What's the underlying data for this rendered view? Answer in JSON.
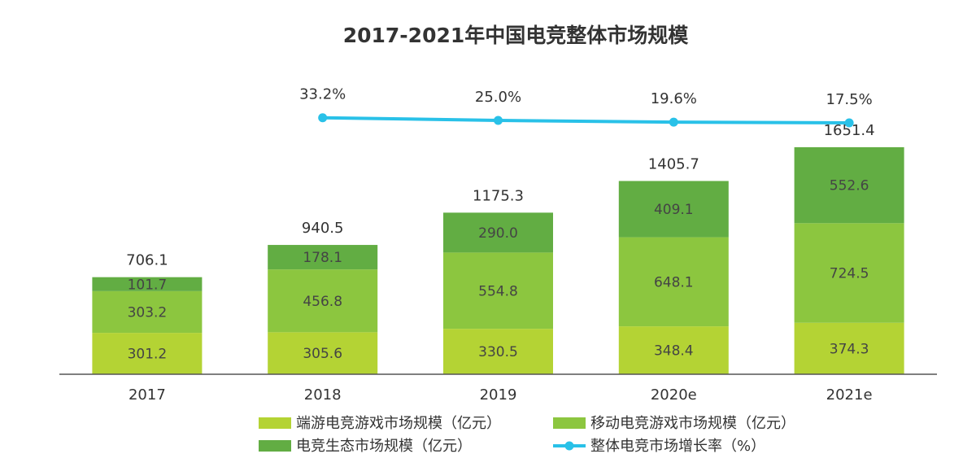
{
  "chart_data": {
    "type": "stacked-bar-line",
    "title": "2017-2021年中国电竞整体市场规模",
    "categories": [
      "2017",
      "2018",
      "2019",
      "2020e",
      "2021e"
    ],
    "ylim": [
      0,
      2000
    ],
    "y2lim": [
      0,
      100
    ],
    "series": [
      {
        "name": "端游电竞游戏市场规模（亿元）",
        "color": "#b4d334",
        "values": [
          301.2,
          305.6,
          330.5,
          348.4,
          374.3
        ]
      },
      {
        "name": "移动电竞游戏市场规模（亿元）",
        "color": "#8cc63f",
        "values": [
          303.2,
          456.8,
          554.8,
          648.1,
          724.5
        ]
      },
      {
        "name": "电竞生态市场规模（亿元）",
        "color": "#62ad43",
        "values": [
          101.7,
          178.1,
          290.0,
          409.1,
          552.6
        ],
        "value_labels": [
          "101.7",
          "178.1",
          "290.0",
          "409.1",
          "552.6"
        ]
      },
      {
        "name": "整体电竞市场增长率（%）",
        "color": "#29c1e8",
        "axis": "y2",
        "type": "line",
        "values": [
          null,
          33.2,
          25.0,
          19.6,
          17.5
        ],
        "value_labels": [
          null,
          "33.2%",
          "25.0%",
          "19.6%",
          "17.5%"
        ]
      }
    ],
    "totals": [
      706.1,
      940.5,
      1175.3,
      1405.7,
      1651.4
    ]
  }
}
